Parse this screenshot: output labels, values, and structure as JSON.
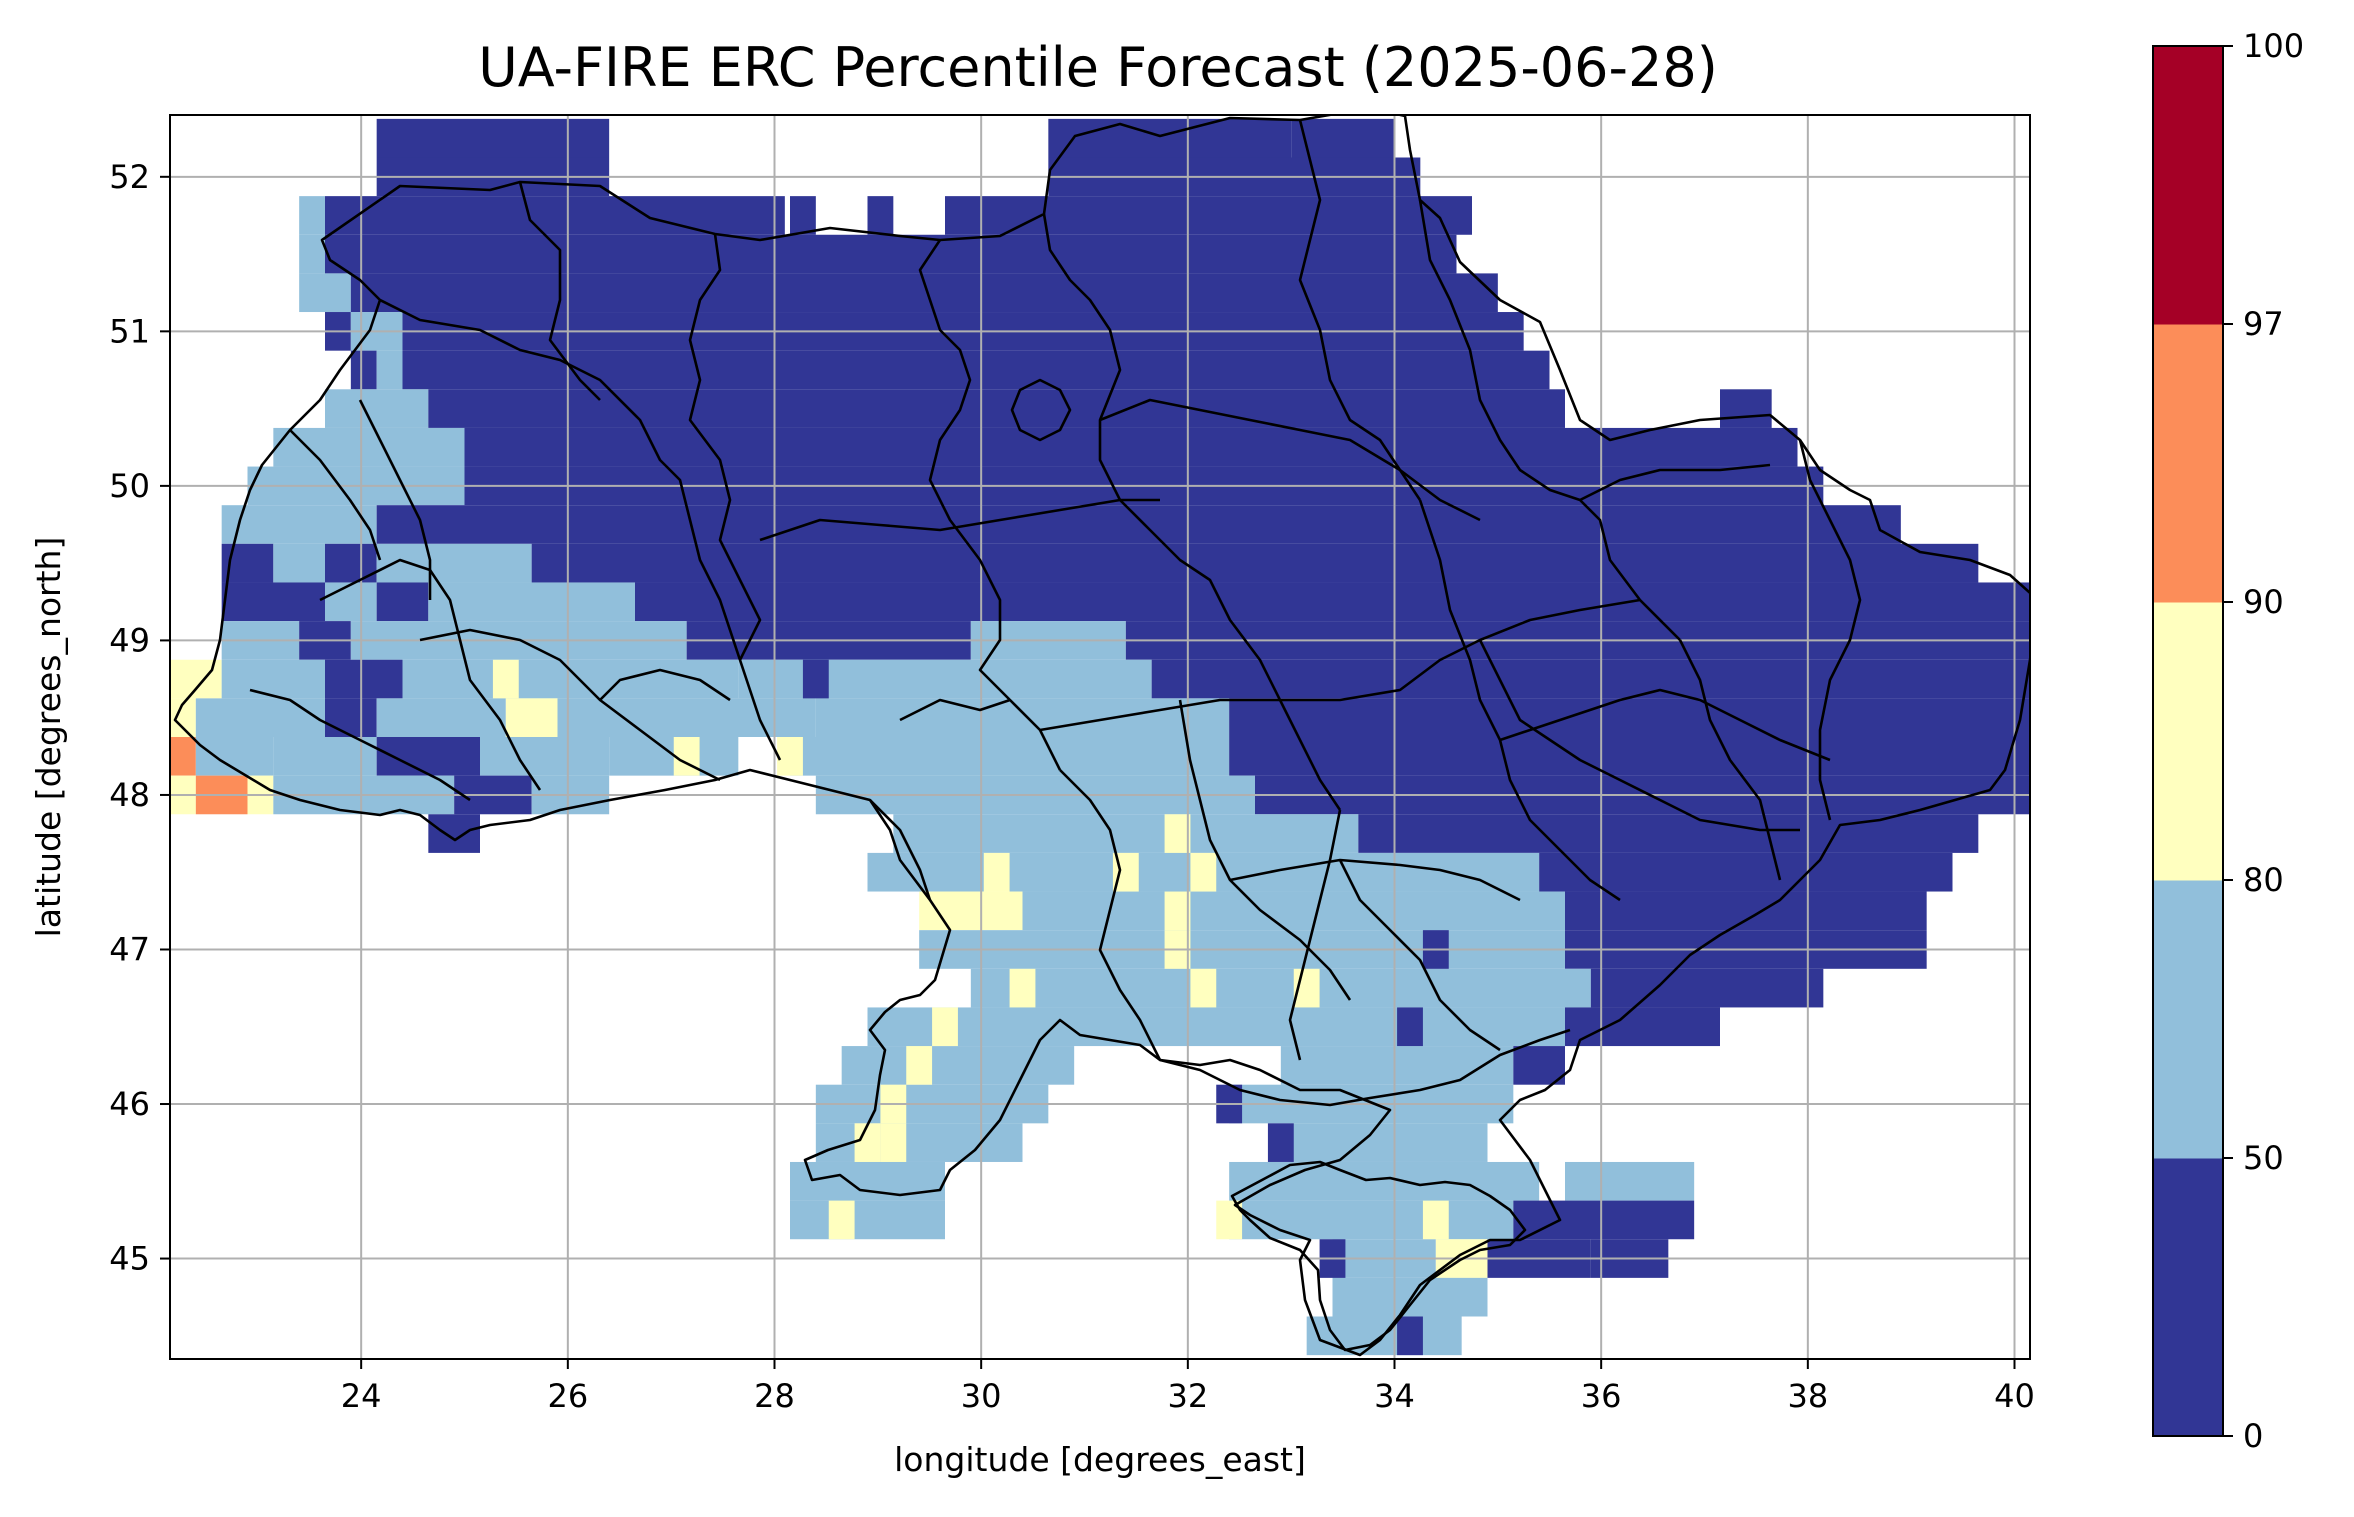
{
  "title": "UA-FIRE ERC Percentile Forecast (2025-06-28)",
  "axes": {
    "xlabel": "longitude [degrees_east]",
    "ylabel": "latitude [degrees_north]",
    "xticks": [
      "24",
      "26",
      "28",
      "30",
      "32",
      "34",
      "36",
      "38",
      "40"
    ],
    "yticks": [
      "45",
      "46",
      "47",
      "48",
      "49",
      "50",
      "51",
      "52"
    ],
    "xlim": [
      22.15,
      40.15
    ],
    "ylim": [
      44.35,
      52.4
    ],
    "grid": true
  },
  "colorbar": {
    "ticks": [
      "0",
      "50",
      "80",
      "90",
      "97",
      "100"
    ],
    "bins": [
      {
        "from": 0,
        "to": 50,
        "color": "#313695"
      },
      {
        "from": 50,
        "to": 80,
        "color": "#91bfdb"
      },
      {
        "from": 80,
        "to": 90,
        "color": "#ffffbf"
      },
      {
        "from": 90,
        "to": 97,
        "color": "#fc8d59"
      },
      {
        "from": 97,
        "to": 100,
        "color": "#a50026"
      }
    ]
  },
  "chart_data": {
    "type": "heatmap",
    "title": "UA-FIRE ERC Percentile Forecast (2025-06-28)",
    "xlabel": "longitude [degrees_east]",
    "ylabel": "latitude [degrees_north]",
    "cell_size_deg": 0.25,
    "class_colors": {
      "1": "#313695",
      "2": "#91bfdb",
      "3": "#ffffbf",
      "4": "#fc8d59",
      "5": "#a50026"
    },
    "class_ranges": {
      "1": "0-50",
      "2": "50-80",
      "3": "80-90",
      "4": "90-97",
      "5": "97-100"
    },
    "grid_rows": [
      {
        "lat": 52.25,
        "runs": [
          [
            24.15,
            26.4,
            1
          ],
          [
            30.65,
            33.0,
            1
          ],
          [
            33.0,
            34.0,
            1
          ]
        ]
      },
      {
        "lat": 52.0,
        "runs": [
          [
            24.15,
            26.4,
            1
          ],
          [
            30.65,
            34.25,
            1
          ]
        ]
      },
      {
        "lat": 51.75,
        "runs": [
          [
            23.4,
            23.65,
            2
          ],
          [
            23.65,
            28.1,
            1
          ],
          [
            28.15,
            28.4,
            1
          ],
          [
            28.9,
            29.15,
            1
          ],
          [
            29.65,
            34.75,
            1
          ]
        ]
      },
      {
        "lat": 51.5,
        "runs": [
          [
            23.4,
            23.65,
            2
          ],
          [
            23.65,
            34.6,
            1
          ]
        ]
      },
      {
        "lat": 51.25,
        "runs": [
          [
            23.4,
            23.9,
            2
          ],
          [
            23.9,
            35.0,
            1
          ]
        ]
      },
      {
        "lat": 51.0,
        "runs": [
          [
            23.65,
            23.9,
            1
          ],
          [
            23.9,
            24.4,
            2
          ],
          [
            24.4,
            35.25,
            1
          ]
        ]
      },
      {
        "lat": 50.75,
        "runs": [
          [
            23.9,
            24.15,
            1
          ],
          [
            24.15,
            24.4,
            2
          ],
          [
            24.4,
            35.5,
            1
          ]
        ]
      },
      {
        "lat": 50.5,
        "runs": [
          [
            23.65,
            24.65,
            2
          ],
          [
            24.65,
            35.65,
            1
          ],
          [
            37.15,
            37.65,
            1
          ]
        ]
      },
      {
        "lat": 50.25,
        "runs": [
          [
            23.15,
            25.0,
            2
          ],
          [
            25.0,
            37.9,
            1
          ]
        ]
      },
      {
        "lat": 50.0,
        "runs": [
          [
            22.9,
            25.0,
            2
          ],
          [
            25.0,
            38.15,
            1
          ]
        ]
      },
      {
        "lat": 49.75,
        "runs": [
          [
            22.65,
            24.15,
            2
          ],
          [
            24.15,
            38.9,
            1
          ]
        ]
      },
      {
        "lat": 49.5,
        "runs": [
          [
            22.65,
            23.15,
            1
          ],
          [
            23.15,
            23.65,
            2
          ],
          [
            23.65,
            24.15,
            1
          ],
          [
            24.15,
            25.65,
            2
          ],
          [
            25.65,
            39.65,
            1
          ]
        ]
      },
      {
        "lat": 49.25,
        "runs": [
          [
            22.65,
            23.65,
            1
          ],
          [
            23.65,
            24.15,
            2
          ],
          [
            24.15,
            24.65,
            1
          ],
          [
            24.65,
            26.65,
            2
          ],
          [
            26.65,
            40.15,
            1
          ]
        ]
      },
      {
        "lat": 49.0,
        "runs": [
          [
            22.65,
            23.4,
            2
          ],
          [
            23.4,
            23.9,
            1
          ],
          [
            23.9,
            24.4,
            2
          ],
          [
            24.4,
            27.15,
            2
          ],
          [
            27.15,
            29.9,
            1
          ],
          [
            29.9,
            31.4,
            2
          ],
          [
            31.4,
            40.15,
            1
          ]
        ]
      },
      {
        "lat": 48.75,
        "runs": [
          [
            22.15,
            22.65,
            3
          ],
          [
            22.65,
            23.65,
            2
          ],
          [
            23.65,
            24.4,
            1
          ],
          [
            24.4,
            27.65,
            2
          ],
          [
            27.65,
            31.65,
            2
          ],
          [
            31.65,
            40.15,
            1
          ]
        ]
      },
      {
        "lat": 48.5,
        "runs": [
          [
            22.15,
            22.4,
            3
          ],
          [
            22.4,
            23.65,
            2
          ],
          [
            23.65,
            24.15,
            1
          ],
          [
            24.15,
            25.4,
            2
          ],
          [
            25.4,
            25.9,
            3
          ],
          [
            25.9,
            28.4,
            2
          ],
          [
            28.4,
            32.4,
            2
          ],
          [
            32.4,
            40.15,
            1
          ]
        ]
      },
      {
        "lat": 48.25,
        "runs": [
          [
            22.15,
            22.4,
            4
          ],
          [
            22.4,
            23.15,
            2
          ],
          [
            23.15,
            24.15,
            2
          ],
          [
            24.15,
            25.15,
            1
          ],
          [
            25.15,
            26.4,
            2
          ],
          [
            26.4,
            27.65,
            2
          ],
          [
            28.15,
            32.4,
            2
          ],
          [
            32.4,
            40.15,
            1
          ]
        ]
      },
      {
        "lat": 48.0,
        "runs": [
          [
            22.15,
            22.4,
            3
          ],
          [
            22.4,
            22.9,
            4
          ],
          [
            22.9,
            23.15,
            3
          ],
          [
            23.15,
            24.9,
            2
          ],
          [
            24.9,
            25.65,
            1
          ],
          [
            25.65,
            26.4,
            2
          ],
          [
            28.4,
            32.65,
            2
          ],
          [
            32.65,
            40.15,
            1
          ]
        ]
      },
      {
        "lat": 47.75,
        "runs": [
          [
            24.65,
            25.15,
            1
          ],
          [
            29.15,
            33.65,
            2
          ],
          [
            33.65,
            39.65,
            1
          ]
        ]
      },
      {
        "lat": 47.5,
        "runs": [
          [
            28.9,
            35.4,
            2
          ],
          [
            35.4,
            39.4,
            1
          ]
        ]
      },
      {
        "lat": 47.25,
        "runs": [
          [
            29.4,
            30.4,
            3
          ],
          [
            30.4,
            35.65,
            2
          ],
          [
            35.65,
            39.15,
            1
          ]
        ]
      },
      {
        "lat": 47.0,
        "runs": [
          [
            29.4,
            35.65,
            2
          ],
          [
            35.65,
            39.15,
            1
          ]
        ]
      },
      {
        "lat": 46.75,
        "runs": [
          [
            29.9,
            35.9,
            2
          ],
          [
            35.9,
            38.15,
            1
          ]
        ]
      },
      {
        "lat": 46.5,
        "runs": [
          [
            28.9,
            35.65,
            2
          ],
          [
            35.65,
            37.15,
            1
          ]
        ]
      },
      {
        "lat": 46.25,
        "runs": [
          [
            28.65,
            30.9,
            2
          ],
          [
            32.9,
            35.15,
            2
          ],
          [
            35.15,
            35.65,
            1
          ]
        ]
      },
      {
        "lat": 46.0,
        "runs": [
          [
            28.4,
            30.65,
            2
          ],
          [
            32.4,
            35.15,
            2
          ]
        ]
      },
      {
        "lat": 45.75,
        "runs": [
          [
            28.4,
            30.4,
            2
          ],
          [
            33.0,
            34.9,
            2
          ]
        ]
      },
      {
        "lat": 45.5,
        "runs": [
          [
            28.15,
            29.65,
            2
          ],
          [
            32.4,
            35.4,
            2
          ],
          [
            35.65,
            36.9,
            2
          ]
        ]
      },
      {
        "lat": 45.25,
        "runs": [
          [
            28.15,
            29.65,
            2
          ],
          [
            32.4,
            35.15,
            2
          ],
          [
            35.15,
            36.9,
            1
          ]
        ]
      },
      {
        "lat": 45.0,
        "runs": [
          [
            33.4,
            34.4,
            2
          ],
          [
            34.4,
            34.9,
            3
          ],
          [
            34.9,
            35.9,
            1
          ],
          [
            35.9,
            36.65,
            1
          ]
        ]
      },
      {
        "lat": 44.75,
        "runs": [
          [
            33.4,
            34.9,
            2
          ]
        ]
      },
      {
        "lat": 44.5,
        "runs": [
          [
            33.15,
            34.65,
            2
          ]
        ]
      }
    ],
    "overlay_cells": [
      {
        "lat": 48.75,
        "lon": 25.4,
        "class": 3
      },
      {
        "lat": 48.25,
        "lon": 28.15,
        "class": 3
      },
      {
        "lat": 47.5,
        "lon": 30.15,
        "class": 3
      },
      {
        "lat": 47.5,
        "lon": 31.4,
        "class": 3
      },
      {
        "lat": 47.5,
        "lon": 32.15,
        "class": 3
      },
      {
        "lat": 47.25,
        "lon": 31.9,
        "class": 3
      },
      {
        "lat": 47.0,
        "lon": 31.9,
        "class": 3
      },
      {
        "lat": 47.75,
        "lon": 31.9,
        "class": 3
      },
      {
        "lat": 46.75,
        "lon": 30.4,
        "class": 3
      },
      {
        "lat": 46.5,
        "lon": 29.65,
        "class": 3
      },
      {
        "lat": 46.25,
        "lon": 29.4,
        "class": 3
      },
      {
        "lat": 46.0,
        "lon": 29.15,
        "class": 3
      },
      {
        "lat": 45.75,
        "lon": 28.9,
        "class": 3
      },
      {
        "lat": 45.75,
        "lon": 29.15,
        "class": 3
      },
      {
        "lat": 45.25,
        "lon": 28.65,
        "class": 3
      },
      {
        "lat": 46.75,
        "lon": 32.15,
        "class": 3
      },
      {
        "lat": 46.75,
        "lon": 33.15,
        "class": 3
      },
      {
        "lat": 45.25,
        "lon": 32.4,
        "class": 3
      },
      {
        "lat": 45.25,
        "lon": 34.4,
        "class": 3
      },
      {
        "lat": 48.25,
        "lon": 27.15,
        "class": 3
      },
      {
        "lat": 47.0,
        "lon": 34.4,
        "class": 1
      },
      {
        "lat": 46.5,
        "lon": 34.15,
        "class": 1
      },
      {
        "lat": 46.0,
        "lon": 32.4,
        "class": 1
      },
      {
        "lat": 45.75,
        "lon": 32.9,
        "class": 1
      },
      {
        "lat": 45.0,
        "lon": 33.4,
        "class": 1
      },
      {
        "lat": 44.5,
        "lon": 34.15,
        "class": 1
      },
      {
        "lat": 48.75,
        "lon": 28.4,
        "class": 1
      }
    ]
  }
}
